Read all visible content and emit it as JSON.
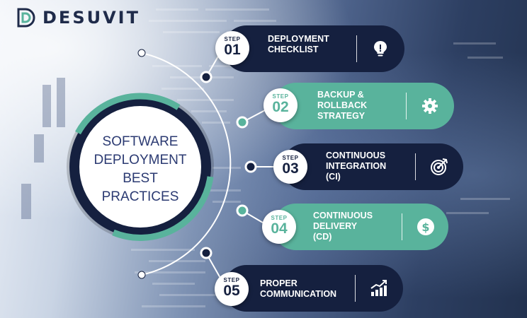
{
  "brand": {
    "name": "DESUVIT"
  },
  "center": {
    "lines": [
      "SOFTWARE",
      "DEPLOYMENT",
      "BEST",
      "PRACTICES"
    ]
  },
  "colors": {
    "navy": "#15203f",
    "teal": "#59b39c",
    "text_blue": "#2b3a72"
  },
  "step_word": "STEP",
  "steps": [
    {
      "num": "01",
      "title": [
        "DEPLOYMENT",
        "CHECKLIST"
      ],
      "icon": "lightbulb-icon",
      "style": "dark"
    },
    {
      "num": "02",
      "title": [
        "BACKUP &",
        "ROLLBACK",
        "STRATEGY"
      ],
      "icon": "gear-icon",
      "style": "teal"
    },
    {
      "num": "03",
      "title": [
        "CONTINUOUS",
        "INTEGRATION",
        "(CI)"
      ],
      "icon": "target-icon",
      "style": "dark"
    },
    {
      "num": "04",
      "title": [
        "CONTINUOUS",
        "DELIVERY",
        "(CD)"
      ],
      "icon": "dollar-coin-icon",
      "style": "teal"
    },
    {
      "num": "05",
      "title": [
        "PROPER",
        "COMMUNICATION"
      ],
      "icon": "growth-chart-icon",
      "style": "dark"
    }
  ]
}
